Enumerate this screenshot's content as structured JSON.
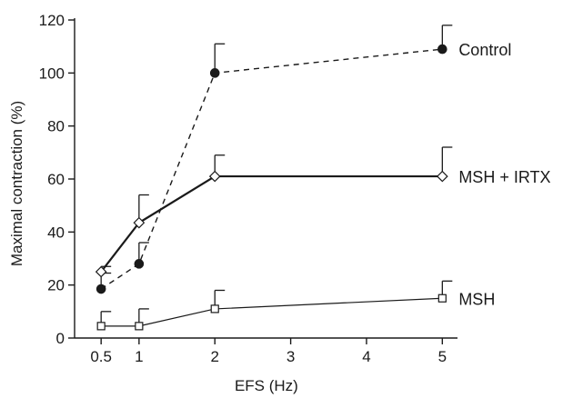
{
  "chart_data": {
    "type": "line",
    "xlabel": "EFS (Hz)",
    "ylabel": "Maximal contraction (%)",
    "xlim": [
      0.15,
      5.2
    ],
    "ylim": [
      0,
      120
    ],
    "x_ticks": [
      0.5,
      1,
      2,
      3,
      4,
      5
    ],
    "x_tick_labels": [
      "0.5",
      "1",
      "2",
      "3",
      "4",
      "5"
    ],
    "y_ticks": [
      0,
      20,
      40,
      60,
      80,
      100,
      120
    ],
    "y_tick_labels": [
      "0",
      "20",
      "40",
      "60",
      "80",
      "100",
      "120"
    ],
    "grid": false,
    "legend": "inline labels at right end of each series",
    "series": [
      {
        "name": "Control",
        "marker": "filled-circle",
        "line": "dashed",
        "x": [
          0.5,
          1,
          2,
          5
        ],
        "y": [
          18.5,
          28,
          100,
          109
        ],
        "error_upper": [
          6,
          8,
          11,
          9
        ]
      },
      {
        "name": "MSH + IRTX",
        "marker": "open-diamond",
        "line": "solid-thick",
        "x": [
          0.5,
          1,
          2,
          5
        ],
        "y": [
          25,
          43.5,
          61,
          61
        ],
        "error_upper": [
          2,
          10.5,
          8,
          11
        ]
      },
      {
        "name": "MSH",
        "marker": "open-square",
        "line": "solid",
        "x": [
          0.5,
          1,
          2,
          5
        ],
        "y": [
          4.5,
          4.5,
          11,
          15
        ],
        "error_upper": [
          5.5,
          6.5,
          7,
          6.5
        ]
      }
    ]
  },
  "colors": {
    "ink": "#1a1a1a",
    "background": "#ffffff"
  }
}
